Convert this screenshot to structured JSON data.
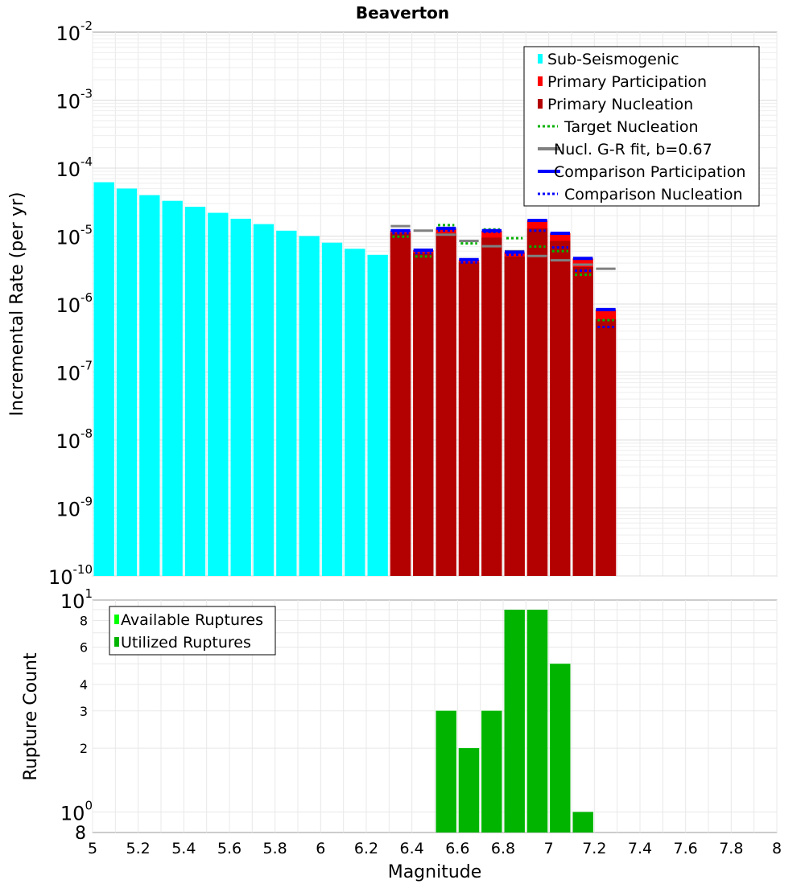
{
  "chart_data": [
    {
      "type": "bar",
      "title": "Beaverton",
      "ylabel": "Incremental Rate (per yr)",
      "xlabel": "",
      "y_scale": "log",
      "xlim": [
        5,
        8
      ],
      "ylim": [
        1e-10,
        0.01
      ],
      "bin_width": 0.1,
      "y_tick_labels": [
        {
          "base": "10",
          "exp": "-2",
          "value": 0.01
        },
        {
          "base": "10",
          "exp": "-3",
          "value": 0.001
        },
        {
          "base": "10",
          "exp": "-4",
          "value": 0.0001
        },
        {
          "base": "10",
          "exp": "-5",
          "value": 1e-05
        },
        {
          "base": "10",
          "exp": "-6",
          "value": 1e-06
        },
        {
          "base": "10",
          "exp": "-7",
          "value": 1e-07
        },
        {
          "base": "10",
          "exp": "-8",
          "value": 1e-08
        },
        {
          "base": "10",
          "exp": "-9",
          "value": 1e-09
        },
        {
          "base": "10",
          "exp": "-10",
          "value": 1e-10
        }
      ],
      "legend": {
        "placement": "top-right",
        "entries": [
          {
            "label": "Sub-Seismogenic",
            "style": "box",
            "color": "#00ffff"
          },
          {
            "label": "Primary Participation",
            "style": "box",
            "color": "#ff0000"
          },
          {
            "label": "Primary Nucleation",
            "style": "box",
            "color": "#b30000"
          },
          {
            "label": "Target Nucleation",
            "style": "dotted",
            "color": "#00b000"
          },
          {
            "label": "Nucl. G-R fit, b=0.67",
            "style": "solid",
            "color": "#808080"
          },
          {
            "label": "Comparison Participation",
            "style": "solid",
            "color": "#0000ff"
          },
          {
            "label": "Comparison Nucleation",
            "style": "dotted",
            "color": "#0000ff"
          }
        ]
      },
      "series": [
        {
          "name": "Sub-Seismogenic",
          "color": "#00ffff",
          "x": [
            5.05,
            5.15,
            5.25,
            5.35,
            5.45,
            5.55,
            5.65,
            5.75,
            5.85,
            5.95,
            6.05,
            6.15,
            6.25
          ],
          "values": [
            6.2e-05,
            5e-05,
            4e-05,
            3.3e-05,
            2.7e-05,
            2.2e-05,
            1.8e-05,
            1.5e-05,
            1.2e-05,
            1e-05,
            8e-06,
            6.5e-06,
            5.3e-06
          ]
        },
        {
          "name": "Primary Participation",
          "color": "#ff0000",
          "x": [
            6.35,
            6.45,
            6.55,
            6.65,
            6.75,
            6.85,
            6.95,
            7.05,
            7.15,
            7.25
          ],
          "values": [
            1.2e-05,
            6.2e-06,
            1.3e-05,
            4.5e-06,
            1.2e-05,
            5.8e-06,
            1.7e-05,
            1.1e-05,
            4.7e-06,
            8.3e-07
          ]
        },
        {
          "name": "Primary Nucleation",
          "color": "#b30000",
          "x": [
            6.35,
            6.45,
            6.55,
            6.65,
            6.75,
            6.85,
            6.95,
            7.05,
            7.15,
            7.25
          ],
          "values": [
            1.1e-05,
            5.6e-06,
            1.1e-05,
            4.1e-06,
            9.5e-06,
            5e-06,
            1.3e-05,
            8.5e-06,
            3.5e-06,
            6e-07
          ]
        },
        {
          "name": "Target Nucleation",
          "color": "#00b000",
          "x": [
            6.35,
            6.45,
            6.55,
            6.65,
            6.75,
            6.85,
            6.95,
            7.05,
            7.15,
            7.25
          ],
          "values": [
            9.8e-06,
            5e-06,
            1.45e-05,
            7.8e-06,
            1.25e-05,
            9.3e-06,
            7e-06,
            6e-06,
            2.7e-06,
            5.8e-07
          ]
        },
        {
          "name": "Nucl. G-R fit, b=0.67",
          "color": "#808080",
          "x": [
            6.35,
            6.45,
            6.55,
            6.65,
            6.75,
            6.85,
            6.95,
            7.05,
            7.15,
            7.25
          ],
          "values": [
            1.4e-05,
            1.2e-05,
            1.05e-05,
            8.5e-06,
            7.1e-06,
            6e-06,
            5.1e-06,
            4.4e-06,
            3.8e-06,
            3.3e-06
          ]
        },
        {
          "name": "Comparison Participation",
          "color": "#0000ff",
          "x": [
            6.35,
            6.45,
            6.55,
            6.65,
            6.75,
            6.85,
            6.95,
            7.05,
            7.15,
            7.25
          ],
          "values": [
            1.2e-05,
            6.2e-06,
            1.3e-05,
            4.5e-06,
            1.2e-05,
            5.8e-06,
            1.7e-05,
            1.1e-05,
            4.7e-06,
            8.3e-07
          ]
        },
        {
          "name": "Comparison Nucleation",
          "color": "#0000ff",
          "x": [
            6.35,
            6.45,
            6.55,
            6.65,
            6.75,
            6.85,
            6.95,
            7.05,
            7.15,
            7.25
          ],
          "values": [
            1.1e-05,
            5.6e-06,
            1.2e-05,
            4.1e-06,
            1.15e-05,
            5.3e-06,
            1.2e-05,
            6.8e-06,
            3.1e-06,
            4.6e-07
          ]
        }
      ]
    },
    {
      "type": "bar",
      "title": "",
      "xlabel": "Magnitude",
      "ylabel": "Rupture Count",
      "y_scale": "log",
      "xlim": [
        5,
        8
      ],
      "ylim": [
        0.8,
        10
      ],
      "bin_width": 0.1,
      "x_ticks": [
        5,
        5.2,
        5.4,
        5.6,
        5.8,
        6,
        6.2,
        6.4,
        6.6,
        6.8,
        7,
        7.2,
        7.4,
        7.6,
        7.8,
        8
      ],
      "x_tick_labels": [
        "5",
        "5.2",
        "5.4",
        "5.6",
        "5.8",
        "6",
        "6.2",
        "6.4",
        "6.6",
        "6.8",
        "7",
        "7.2",
        "7.4",
        "7.6",
        "7.8",
        "8"
      ],
      "y_major_labels": [
        {
          "base": "10",
          "exp": "1",
          "value": 10
        },
        {
          "base": "10",
          "exp": "0",
          "value": 1
        }
      ],
      "y_minor_labels": [
        {
          "label": "8",
          "value": 8
        },
        {
          "label": "6",
          "value": 6
        },
        {
          "label": "4",
          "value": 4
        },
        {
          "label": "3",
          "value": 3
        },
        {
          "label": "2",
          "value": 2
        }
      ],
      "y_bottom_label": {
        "label": "8",
        "value": 0.8
      },
      "legend": {
        "placement": "top-left",
        "entries": [
          {
            "label": "Available Ruptures",
            "style": "box",
            "color": "#00ff00"
          },
          {
            "label": "Utilized Ruptures",
            "style": "box",
            "color": "#00b400"
          }
        ]
      },
      "series": [
        {
          "name": "Available Ruptures",
          "color": "#00ff00",
          "x": [
            6.55,
            6.65,
            6.75,
            6.85,
            6.95,
            7.05,
            7.15
          ],
          "values": [
            3,
            2,
            3,
            9,
            9,
            5,
            1
          ]
        },
        {
          "name": "Utilized Ruptures",
          "color": "#00b400",
          "x": [
            6.55,
            6.65,
            6.75,
            6.85,
            6.95,
            7.05,
            7.15
          ],
          "values": [
            3,
            2,
            3,
            9,
            9,
            5,
            1
          ]
        }
      ]
    }
  ]
}
